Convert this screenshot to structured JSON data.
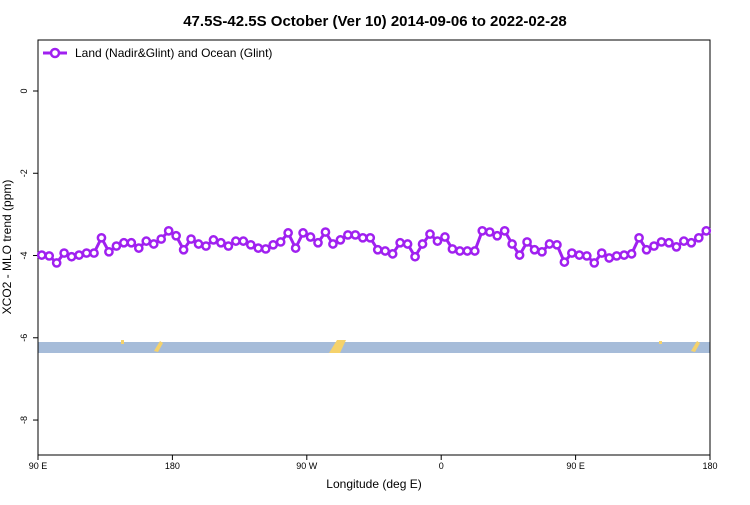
{
  "chart_data": {
    "type": "line",
    "title": "47.5S-42.5S October (Ver 10)   2014-09-06 to 2022-02-28",
    "x_label": "Longitude (deg E)",
    "y_label": "XCO2 - MLO trend (ppm)",
    "legend": "top-left",
    "xlim": [
      90,
      540
    ],
    "xticks": [
      {
        "value": 90,
        "label": "90 E"
      },
      {
        "value": 180,
        "label": "180"
      },
      {
        "value": 270,
        "label": "90 W"
      },
      {
        "value": 360,
        "label": "0"
      },
      {
        "value": 450,
        "label": "90 E"
      },
      {
        "value": 540,
        "label": "180"
      }
    ],
    "ylim": [
      -8.85,
      1.24
    ],
    "yticks": [
      0,
      -2,
      -4,
      -6,
      -8
    ],
    "series": [
      {
        "name": "Land (Nadir&Glint) and Ocean (Glint)",
        "color": "#a020f0",
        "x": [
          92.5,
          97.5,
          102.5,
          107.5,
          112.5,
          117.5,
          122.5,
          127.5,
          132.5,
          137.5,
          142.5,
          147.5,
          152.5,
          157.5,
          162.5,
          167.5,
          172.5,
          177.5,
          182.5,
          187.5,
          192.5,
          197.5,
          202.5,
          207.5,
          212.5,
          217.5,
          222.5,
          227.5,
          232.5,
          237.5,
          242.5,
          247.5,
          252.5,
          257.5,
          262.5,
          267.5,
          272.5,
          277.5,
          282.5,
          287.5,
          292.5,
          297.5,
          302.5,
          307.5,
          312.5,
          317.5,
          322.5,
          327.5,
          332.5,
          337.5,
          342.5,
          347.5,
          352.5,
          357.5,
          362.5,
          367.5,
          372.5,
          377.5,
          382.5,
          387.5,
          392.5,
          397.5,
          402.5,
          407.5,
          412.5,
          417.5,
          422.5,
          427.5,
          432.5,
          437.5,
          442.5,
          447.5,
          452.5,
          457.5,
          462.5,
          467.5,
          472.5,
          477.5,
          482.5,
          487.5,
          492.5,
          497.5,
          502.5,
          507.5,
          512.5,
          517.5,
          522.5,
          527.5,
          532.5,
          537.5
        ],
        "values": [
          -3.99,
          -4.01,
          -4.18,
          -3.94,
          -4.03,
          -3.99,
          -3.94,
          -3.94,
          -3.57,
          -3.91,
          -3.77,
          -3.69,
          -3.69,
          -3.82,
          -3.65,
          -3.72,
          -3.6,
          -3.4,
          -3.52,
          -3.86,
          -3.6,
          -3.72,
          -3.77,
          -3.62,
          -3.69,
          -3.77,
          -3.65,
          -3.65,
          -3.74,
          -3.82,
          -3.84,
          -3.74,
          -3.67,
          -3.45,
          -3.82,
          -3.45,
          -3.55,
          -3.69,
          -3.43,
          -3.72,
          -3.62,
          -3.5,
          -3.5,
          -3.57,
          -3.57,
          -3.86,
          -3.89,
          -3.96,
          -3.69,
          -3.72,
          -4.03,
          -3.72,
          -3.48,
          -3.65,
          -3.55,
          -3.84,
          -3.89,
          -3.89,
          -3.89,
          -3.4,
          -3.43,
          -3.52,
          -3.4,
          -3.72,
          -3.99,
          -3.67,
          -3.86,
          -3.91,
          -3.72,
          -3.74,
          -4.16,
          -3.94,
          -3.99,
          -4.01,
          -4.18,
          -3.94,
          -4.06,
          -4.01,
          -3.99,
          -3.96,
          -3.57,
          -3.86,
          -3.77,
          -3.67,
          -3.69,
          -3.79,
          -3.65,
          -3.69,
          -3.57,
          -3.4
        ]
      }
    ]
  }
}
